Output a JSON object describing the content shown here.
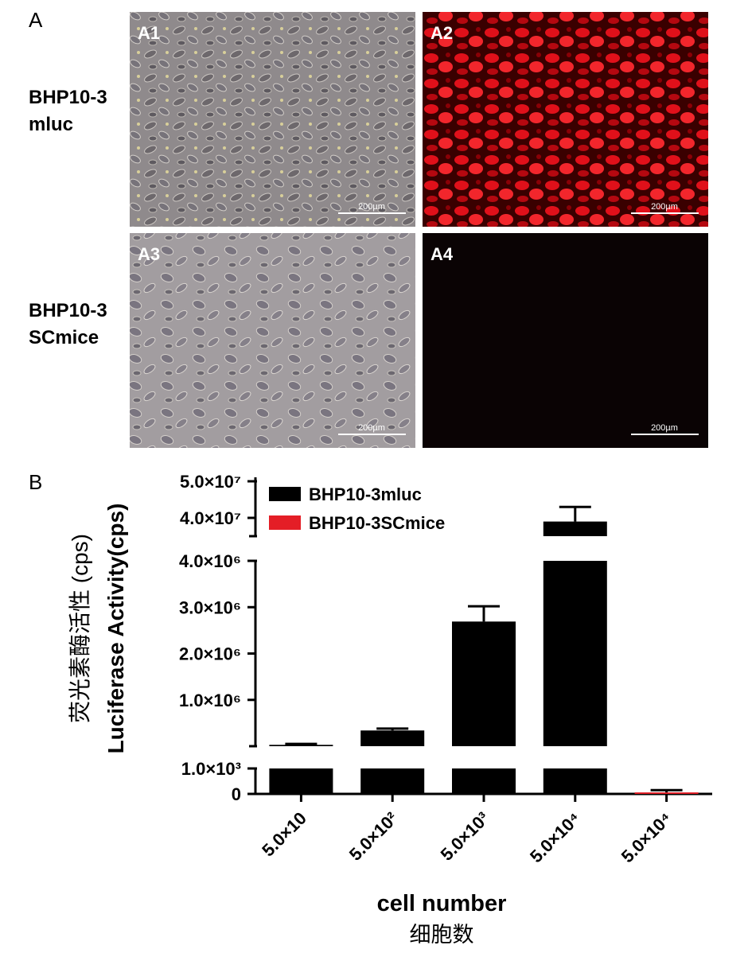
{
  "panel_a": {
    "label": "A",
    "rows": [
      {
        "label_lines": [
          "BHP10-3",
          "mluc"
        ]
      },
      {
        "label_lines": [
          "BHP10-3",
          "SCmice"
        ]
      }
    ],
    "images": [
      {
        "label": "A1",
        "scale_bar": "200µm"
      },
      {
        "label": "A2",
        "scale_bar": "200µm"
      },
      {
        "label": "A3",
        "scale_bar": "200µm"
      },
      {
        "label": "A4",
        "scale_bar": "200µm"
      }
    ]
  },
  "chart_data": {
    "label": "B",
    "type": "bar",
    "ylabel_cn": "荧光素酶活性 (cps)",
    "ylabel": "Luciferase Activity(cps)",
    "xlabel": "cell number",
    "xlabel_cn": "细胞数",
    "categories": [
      "5.0×10",
      "5.0×10²",
      "5.0×10³",
      "5.0×10⁴",
      "5.0×10⁴"
    ],
    "series": [
      {
        "name": "BHP10-3mluc",
        "color": "#000000",
        "values": [
          30000,
          340000,
          2690000,
          39000000,
          null
        ],
        "errors": [
          20000,
          40000,
          330000,
          4000000,
          null
        ]
      },
      {
        "name": "BHP10-3SCmice",
        "color": "#e41e26",
        "values": [
          null,
          null,
          null,
          null,
          60
        ],
        "errors": [
          null,
          null,
          null,
          null,
          90
        ]
      }
    ],
    "y_segments": [
      {
        "ylim": [
          0,
          1000
        ],
        "yticks": [
          0,
          {
            "value": 1000,
            "label": "1.0×10³"
          }
        ]
      },
      {
        "ylim": [
          1000,
          4000000
        ],
        "yticks": [
          {
            "value": 1000000,
            "label": "1.0×10⁶"
          },
          {
            "value": 2000000,
            "label": "2.0×10⁶"
          },
          {
            "value": 3000000,
            "label": "3.0×10⁶"
          },
          {
            "value": 4000000,
            "label": "4.0×10⁶"
          }
        ]
      },
      {
        "ylim": [
          35000000,
          50000000
        ],
        "yticks": [
          {
            "value": 40000000,
            "label": "4.0×10⁷"
          },
          {
            "value": 50000000,
            "label": "5.0×10⁷"
          }
        ]
      }
    ]
  }
}
